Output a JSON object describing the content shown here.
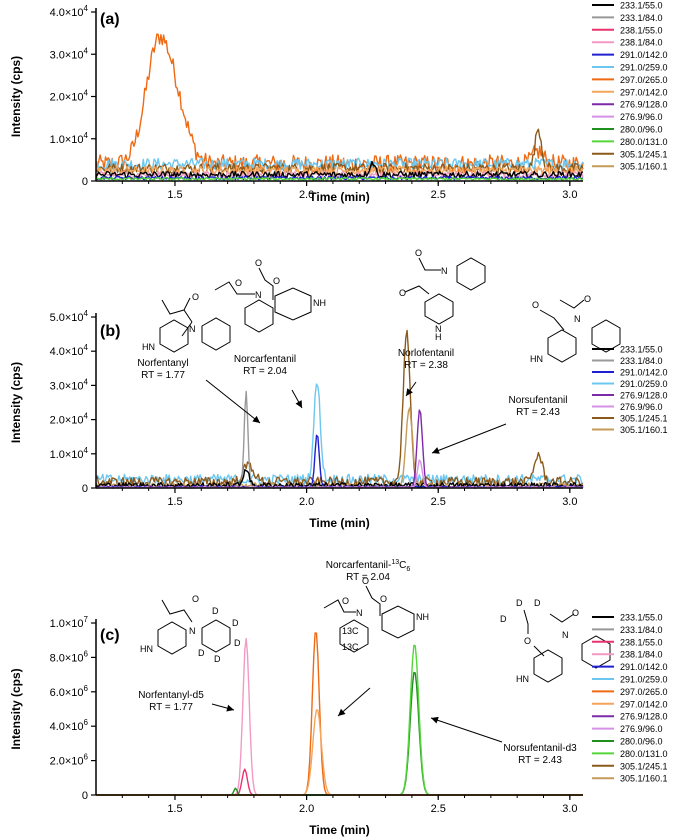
{
  "chart_data": [
    {
      "type": "line",
      "panel_label": "(a)",
      "xlabel": "Time (min)",
      "ylabel": "Intensity (cps)",
      "xlim": [
        1.2,
        3.05
      ],
      "ylim": [
        0,
        40000
      ],
      "x_ticks": [
        "1.5",
        "2.0",
        "2.5",
        "3.0"
      ],
      "y_ticks": [
        {
          "mant": "0",
          "exp": ""
        },
        {
          "mant": "1.0×10",
          "exp": "4"
        },
        {
          "mant": "2.0×10",
          "exp": "4"
        },
        {
          "mant": "3.0×10",
          "exp": "4"
        },
        {
          "mant": "4.0×10",
          "exp": "4"
        }
      ],
      "legend": [
        {
          "label": "233.1/55.0",
          "color": "#000000"
        },
        {
          "label": "233.1/84.0",
          "color": "#999999"
        },
        {
          "label": "238.1/55.0",
          "color": "#e8336f"
        },
        {
          "label": "238.1/84.0",
          "color": "#f29ac4"
        },
        {
          "label": "291.0/142.0",
          "color": "#1f1fcf"
        },
        {
          "label": "291.0/259.0",
          "color": "#6cc7f0"
        },
        {
          "label": "297.0/265.0",
          "color": "#ef6a12"
        },
        {
          "label": "297.0/142.0",
          "color": "#f5a55a"
        },
        {
          "label": "276.9/128.0",
          "color": "#7d2aa8"
        },
        {
          "label": "276.9/96.0",
          "color": "#d591e6"
        },
        {
          "label": "280.0/96.0",
          "color": "#1f8f1f"
        },
        {
          "label": "280.0/131.0",
          "color": "#55d63a"
        },
        {
          "label": "305.1/245.1",
          "color": "#8b5a1b"
        },
        {
          "label": "305.1/160.1",
          "color": "#c59a5a"
        }
      ],
      "series": [
        {
          "name": "297.0/265.0",
          "color": "#ef6a12",
          "baseline": 4000,
          "noise": 2200,
          "peaks": [
            [
              1.44,
              29000,
              0.05
            ],
            [
              1.52,
              8000,
              0.04
            ],
            [
              2.88,
              3000,
              0.02
            ]
          ]
        },
        {
          "name": "291.0/259.0",
          "color": "#6cc7f0",
          "baseline": 4000,
          "noise": 1400,
          "peaks": []
        },
        {
          "name": "305.1/245.1",
          "color": "#8b5a1b",
          "baseline": 3000,
          "noise": 1200,
          "peaks": [
            [
              2.88,
              9500,
              0.012
            ]
          ]
        },
        {
          "name": "297.0/142.0",
          "color": "#f5a55a",
          "baseline": 2500,
          "noise": 1000,
          "peaks": []
        },
        {
          "name": "238.1/84.0",
          "color": "#f29ac4",
          "baseline": 1500,
          "noise": 700,
          "peaks": []
        },
        {
          "name": "233.1/55.0",
          "color": "#000000",
          "baseline": 1500,
          "noise": 800,
          "peaks": [
            [
              2.25,
              3000,
              0.01
            ]
          ]
        },
        {
          "name": "291.0/142.0",
          "color": "#1f1fcf",
          "baseline": 700,
          "noise": 400,
          "peaks": []
        },
        {
          "name": "280.0/131.0",
          "color": "#55d63a",
          "baseline": 500,
          "noise": 300,
          "peaks": []
        }
      ]
    },
    {
      "type": "line",
      "panel_label": "(b)",
      "xlabel": "Time (min)",
      "ylabel": "Intensity (cps)",
      "xlim": [
        1.2,
        3.05
      ],
      "ylim": [
        0,
        50000
      ],
      "x_ticks": [
        "1.5",
        "2.0",
        "2.5",
        "3.0"
      ],
      "y_ticks": [
        {
          "mant": "0",
          "exp": ""
        },
        {
          "mant": "1.0×10",
          "exp": "4"
        },
        {
          "mant": "2.0×10",
          "exp": "4"
        },
        {
          "mant": "3.0×10",
          "exp": "4"
        },
        {
          "mant": "4.0×10",
          "exp": "4"
        },
        {
          "mant": "5.0×10",
          "exp": "4"
        }
      ],
      "legend": [
        {
          "label": "233.1/55.0",
          "color": "#000000"
        },
        {
          "label": "233.1/84.0",
          "color": "#999999"
        },
        {
          "label": "291.0/142.0",
          "color": "#1f1fcf"
        },
        {
          "label": "291.0/259.0",
          "color": "#6cc7f0"
        },
        {
          "label": "276.9/128.0",
          "color": "#7d2aa8"
        },
        {
          "label": "276.9/96.0",
          "color": "#d591e6"
        },
        {
          "label": "305.1/245.1",
          "color": "#8b5a1b"
        },
        {
          "label": "305.1/160.1",
          "color": "#c59a5a"
        }
      ],
      "annotations": [
        {
          "name": "Norfentanyl",
          "rt": "RT = 1.77"
        },
        {
          "name": "Norcarfentanil",
          "rt": "RT = 2.04"
        },
        {
          "name": "Norlofentanil",
          "rt": "RT = 2.38"
        },
        {
          "name": "Norsufentanil",
          "rt": "RT = 2.43"
        }
      ],
      "series": [
        {
          "name": "291.0/259.0",
          "color": "#6cc7f0",
          "baseline": 2500,
          "noise": 1500,
          "peaks": [
            [
              2.04,
              28500,
              0.012
            ]
          ]
        },
        {
          "name": "305.1/245.1",
          "color": "#8b5a1b",
          "baseline": 1800,
          "noise": 1400,
          "peaks": [
            [
              1.78,
              5000,
              0.02
            ],
            [
              2.38,
              44000,
              0.013
            ],
            [
              2.88,
              8000,
              0.015
            ]
          ]
        },
        {
          "name": "305.1/160.1",
          "color": "#c59a5a",
          "baseline": 800,
          "noise": 700,
          "peaks": [
            [
              2.39,
              23000,
              0.012
            ]
          ]
        },
        {
          "name": "233.1/84.0",
          "color": "#999999",
          "baseline": 400,
          "noise": 300,
          "peaks": [
            [
              1.77,
              28000,
              0.007
            ]
          ]
        },
        {
          "name": "233.1/55.0",
          "color": "#000000",
          "baseline": 800,
          "noise": 800,
          "peaks": [
            [
              1.77,
              5000,
              0.01
            ]
          ]
        },
        {
          "name": "291.0/142.0",
          "color": "#1f1fcf",
          "baseline": 300,
          "noise": 300,
          "peaks": [
            [
              2.04,
              15500,
              0.008
            ]
          ]
        },
        {
          "name": "276.9/128.0",
          "color": "#7d2aa8",
          "baseline": 200,
          "noise": 200,
          "peaks": [
            [
              2.43,
              23000,
              0.01
            ]
          ]
        },
        {
          "name": "276.9/96.0",
          "color": "#d591e6",
          "baseline": 200,
          "noise": 200,
          "peaks": [
            [
              2.43,
              8000,
              0.009
            ]
          ]
        }
      ]
    },
    {
      "type": "line",
      "panel_label": "(c)",
      "xlabel": "Time (min)",
      "ylabel": "Intensity (cps)",
      "xlim": [
        1.2,
        3.05
      ],
      "ylim": [
        0,
        10000000
      ],
      "x_ticks": [
        "1.5",
        "2.0",
        "2.5",
        "3.0"
      ],
      "y_ticks": [
        {
          "mant": "0",
          "exp": ""
        },
        {
          "mant": "2.0×10",
          "exp": "6"
        },
        {
          "mant": "4.0×10",
          "exp": "6"
        },
        {
          "mant": "6.0×10",
          "exp": "6"
        },
        {
          "mant": "8.0×10",
          "exp": "6"
        },
        {
          "mant": "1.0×10",
          "exp": "7"
        }
      ],
      "legend": [
        {
          "label": "233.1/55.0",
          "color": "#000000"
        },
        {
          "label": "233.1/84.0",
          "color": "#999999"
        },
        {
          "label": "238.1/55.0",
          "color": "#e8336f"
        },
        {
          "label": "238.1/84.0",
          "color": "#f29ac4"
        },
        {
          "label": "291.0/142.0",
          "color": "#1f1fcf"
        },
        {
          "label": "291.0/259.0",
          "color": "#6cc7f0"
        },
        {
          "label": "297.0/265.0",
          "color": "#ef6a12"
        },
        {
          "label": "297.0/142.0",
          "color": "#f5a55a"
        },
        {
          "label": "276.9/128.0",
          "color": "#7d2aa8"
        },
        {
          "label": "276.9/96.0",
          "color": "#d591e6"
        },
        {
          "label": "280.0/96.0",
          "color": "#1f8f1f"
        },
        {
          "label": "280.0/131.0",
          "color": "#55d63a"
        },
        {
          "label": "305.1/245.1",
          "color": "#8b5a1b"
        },
        {
          "label": "305.1/160.1",
          "color": "#c59a5a"
        }
      ],
      "annotations": [
        {
          "name": "Norfentanyl-d5",
          "rt": "RT = 1.77"
        },
        {
          "name": "Norcarfentanil-",
          "sup": "13",
          "name_tail": "C",
          "sub": "6",
          "rt": "RT = 2.04"
        },
        {
          "name": "Norsufentanil-d3",
          "rt": "RT = 2.43"
        }
      ],
      "series": [
        {
          "name": "238.1/84.0",
          "color": "#f29ac4",
          "baseline": 0,
          "noise": 0,
          "peaks": [
            [
              1.77,
              9100000,
              0.012
            ]
          ]
        },
        {
          "name": "238.1/55.0",
          "color": "#e8336f",
          "baseline": 0,
          "noise": 0,
          "peaks": [
            [
              1.765,
              1500000,
              0.01
            ]
          ]
        },
        {
          "name": "280.0/96.0",
          "color": "#1f8f1f",
          "baseline": 0,
          "noise": 0,
          "peaks": [
            [
              1.73,
              400000,
              0.006
            ],
            [
              2.41,
              7200000,
              0.016
            ]
          ]
        },
        {
          "name": "280.0/131.0",
          "color": "#55d63a",
          "baseline": 0,
          "noise": 0,
          "peaks": [
            [
              2.41,
              8800000,
              0.016
            ]
          ]
        },
        {
          "name": "297.0/265.0",
          "color": "#ef6a12",
          "baseline": 0,
          "noise": 0,
          "peaks": [
            [
              2.035,
              9600000,
              0.013
            ]
          ]
        },
        {
          "name": "297.0/142.0",
          "color": "#f5a55a",
          "baseline": 0,
          "noise": 0,
          "peaks": [
            [
              2.04,
              5000000,
              0.016
            ]
          ]
        }
      ]
    }
  ]
}
